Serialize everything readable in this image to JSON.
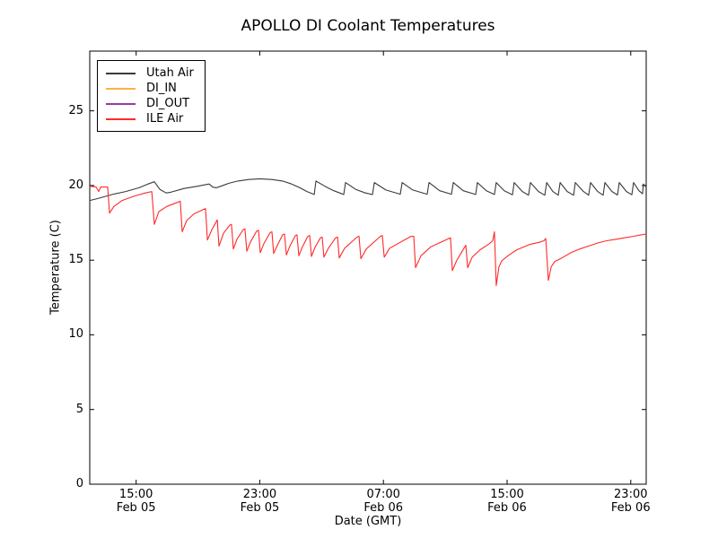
{
  "figure": {
    "background": "#ffffff",
    "frame_color": "#000000"
  },
  "chart_data": {
    "type": "line",
    "title": "APOLLO DI Coolant Temperatures",
    "xlabel": "Date (GMT)",
    "ylabel": "Temperature (C)",
    "x_units": "hours since Feb 05 12:00 GMT",
    "xlim": [
      0,
      36
    ],
    "ylim": [
      0,
      29
    ],
    "grid": false,
    "legend": {
      "position": "upper-left"
    },
    "x_ticks": [
      {
        "value": 3,
        "time": "15:00",
        "date": "Feb 05"
      },
      {
        "value": 11,
        "time": "23:00",
        "date": "Feb 05"
      },
      {
        "value": 19,
        "time": "07:00",
        "date": "Feb 06"
      },
      {
        "value": 27,
        "time": "15:00",
        "date": "Feb 06"
      },
      {
        "value": 35,
        "time": "23:00",
        "date": "Feb 06"
      }
    ],
    "y_ticks": [
      {
        "value": 0,
        "label": "0"
      },
      {
        "value": 5,
        "label": "5"
      },
      {
        "value": 10,
        "label": "10"
      },
      {
        "value": 15,
        "label": "15"
      },
      {
        "value": 20,
        "label": "20"
      },
      {
        "value": 25,
        "label": "25"
      }
    ],
    "series": [
      {
        "name": "Utah Air",
        "color": "#3a3a3a",
        "visible_in_plot": true,
        "points": [
          [
            0,
            19.0
          ],
          [
            0.58,
            19.15
          ],
          [
            1.45,
            19.4
          ],
          [
            2.32,
            19.6
          ],
          [
            3.19,
            19.85
          ],
          [
            3.77,
            20.1
          ],
          [
            4.18,
            20.25
          ],
          [
            4.53,
            19.75
          ],
          [
            4.94,
            19.5
          ],
          [
            5.23,
            19.55
          ],
          [
            6.1,
            19.8
          ],
          [
            6.97,
            19.95
          ],
          [
            7.72,
            20.1
          ],
          [
            7.95,
            19.9
          ],
          [
            8.19,
            19.85
          ],
          [
            8.48,
            19.95
          ],
          [
            9.0,
            20.15
          ],
          [
            9.58,
            20.3
          ],
          [
            10.28,
            20.4
          ],
          [
            11.03,
            20.45
          ],
          [
            11.79,
            20.4
          ],
          [
            12.48,
            20.3
          ],
          [
            13.06,
            20.1
          ],
          [
            13.59,
            19.85
          ],
          [
            14.05,
            19.6
          ],
          [
            14.52,
            19.4
          ],
          [
            14.63,
            20.3
          ],
          [
            15.21,
            19.95
          ],
          [
            15.79,
            19.65
          ],
          [
            16.43,
            19.4
          ],
          [
            16.55,
            20.2
          ],
          [
            17.19,
            19.75
          ],
          [
            17.83,
            19.5
          ],
          [
            18.29,
            19.4
          ],
          [
            18.41,
            20.2
          ],
          [
            19.16,
            19.7
          ],
          [
            20.09,
            19.42
          ],
          [
            20.21,
            20.2
          ],
          [
            20.9,
            19.7
          ],
          [
            21.83,
            19.42
          ],
          [
            21.95,
            20.2
          ],
          [
            22.64,
            19.65
          ],
          [
            23.4,
            19.42
          ],
          [
            23.52,
            20.2
          ],
          [
            24.16,
            19.65
          ],
          [
            24.97,
            19.4
          ],
          [
            25.08,
            20.2
          ],
          [
            25.66,
            19.65
          ],
          [
            26.18,
            19.4
          ],
          [
            26.3,
            20.2
          ],
          [
            26.82,
            19.65
          ],
          [
            27.35,
            19.38
          ],
          [
            27.46,
            20.2
          ],
          [
            27.99,
            19.6
          ],
          [
            28.39,
            19.35
          ],
          [
            28.51,
            20.2
          ],
          [
            29.03,
            19.6
          ],
          [
            29.44,
            19.35
          ],
          [
            29.56,
            20.2
          ],
          [
            29.96,
            19.6
          ],
          [
            30.31,
            19.35
          ],
          [
            30.43,
            20.2
          ],
          [
            30.89,
            19.6
          ],
          [
            31.3,
            19.35
          ],
          [
            31.41,
            20.2
          ],
          [
            31.94,
            19.6
          ],
          [
            32.28,
            19.35
          ],
          [
            32.4,
            20.2
          ],
          [
            32.86,
            19.6
          ],
          [
            33.21,
            19.35
          ],
          [
            33.33,
            20.2
          ],
          [
            33.79,
            19.6
          ],
          [
            34.14,
            19.37
          ],
          [
            34.26,
            20.2
          ],
          [
            34.72,
            19.6
          ],
          [
            35.07,
            19.38
          ],
          [
            35.18,
            20.2
          ],
          [
            35.53,
            19.65
          ],
          [
            35.76,
            19.45
          ],
          [
            35.82,
            20.1
          ],
          [
            36,
            19.9
          ]
        ]
      },
      {
        "name": "DI_IN",
        "color": "#ffb04a",
        "visible_in_plot": false,
        "points": []
      },
      {
        "name": "DI_OUT",
        "color": "#963ca0",
        "visible_in_plot": false,
        "points": []
      },
      {
        "name": "ILE Air",
        "color": "#ff2a2a",
        "visible_in_plot": true,
        "points": [
          [
            0,
            19.95
          ],
          [
            0.41,
            19.9
          ],
          [
            0.58,
            19.6
          ],
          [
            0.7,
            19.9
          ],
          [
            1.16,
            19.9
          ],
          [
            1.28,
            18.15
          ],
          [
            1.57,
            18.6
          ],
          [
            2.09,
            19.0
          ],
          [
            2.9,
            19.3
          ],
          [
            3.6,
            19.5
          ],
          [
            4.01,
            19.6
          ],
          [
            4.18,
            17.4
          ],
          [
            4.47,
            18.25
          ],
          [
            4.99,
            18.6
          ],
          [
            5.75,
            18.9
          ],
          [
            5.86,
            18.95
          ],
          [
            5.98,
            16.9
          ],
          [
            6.27,
            17.65
          ],
          [
            6.74,
            18.1
          ],
          [
            7.37,
            18.4
          ],
          [
            7.49,
            18.45
          ],
          [
            7.61,
            16.35
          ],
          [
            7.9,
            17.05
          ],
          [
            8.25,
            17.7
          ],
          [
            8.36,
            15.95
          ],
          [
            8.65,
            16.8
          ],
          [
            9.06,
            17.35
          ],
          [
            9.17,
            17.4
          ],
          [
            9.29,
            15.75
          ],
          [
            9.52,
            16.4
          ],
          [
            9.93,
            17.05
          ],
          [
            10.04,
            17.1
          ],
          [
            10.16,
            15.6
          ],
          [
            10.39,
            16.2
          ],
          [
            10.8,
            16.95
          ],
          [
            10.92,
            17.0
          ],
          [
            11.03,
            15.5
          ],
          [
            11.26,
            16.1
          ],
          [
            11.67,
            16.85
          ],
          [
            11.79,
            16.9
          ],
          [
            11.9,
            15.45
          ],
          [
            12.14,
            16.0
          ],
          [
            12.48,
            16.7
          ],
          [
            12.6,
            16.75
          ],
          [
            12.72,
            15.35
          ],
          [
            12.95,
            15.95
          ],
          [
            13.3,
            16.65
          ],
          [
            13.41,
            16.7
          ],
          [
            13.53,
            15.3
          ],
          [
            13.76,
            15.9
          ],
          [
            14.11,
            16.6
          ],
          [
            14.23,
            16.65
          ],
          [
            14.34,
            15.25
          ],
          [
            14.57,
            15.85
          ],
          [
            14.92,
            16.5
          ],
          [
            15.04,
            16.55
          ],
          [
            15.15,
            15.2
          ],
          [
            15.44,
            15.8
          ],
          [
            15.91,
            16.5
          ],
          [
            16.03,
            16.55
          ],
          [
            16.14,
            15.15
          ],
          [
            16.49,
            15.8
          ],
          [
            17.3,
            16.55
          ],
          [
            17.42,
            16.6
          ],
          [
            17.54,
            15.1
          ],
          [
            17.89,
            15.75
          ],
          [
            18.81,
            16.6
          ],
          [
            18.93,
            16.65
          ],
          [
            19.05,
            15.2
          ],
          [
            19.4,
            15.8
          ],
          [
            20.79,
            16.6
          ],
          [
            20.96,
            16.6
          ],
          [
            21.08,
            14.5
          ],
          [
            21.43,
            15.3
          ],
          [
            22.07,
            15.9
          ],
          [
            23.23,
            16.45
          ],
          [
            23.34,
            16.5
          ],
          [
            23.46,
            14.3
          ],
          [
            23.75,
            15.0
          ],
          [
            24.21,
            15.8
          ],
          [
            24.33,
            16.0
          ],
          [
            24.45,
            14.5
          ],
          [
            24.74,
            15.2
          ],
          [
            25.26,
            15.7
          ],
          [
            25.84,
            16.1
          ],
          [
            26.07,
            16.3
          ],
          [
            26.18,
            16.9
          ],
          [
            26.3,
            13.3
          ],
          [
            26.47,
            14.55
          ],
          [
            26.65,
            14.95
          ],
          [
            27.06,
            15.3
          ],
          [
            27.64,
            15.7
          ],
          [
            28.45,
            16.05
          ],
          [
            29.09,
            16.2
          ],
          [
            29.38,
            16.3
          ],
          [
            29.5,
            16.45
          ],
          [
            29.67,
            13.65
          ],
          [
            29.85,
            14.55
          ],
          [
            30.08,
            14.9
          ],
          [
            30.54,
            15.15
          ],
          [
            31.12,
            15.5
          ],
          [
            31.7,
            15.75
          ],
          [
            32.28,
            15.95
          ],
          [
            32.86,
            16.15
          ],
          [
            33.44,
            16.3
          ],
          [
            34.02,
            16.4
          ],
          [
            34.6,
            16.5
          ],
          [
            35.18,
            16.6
          ],
          [
            35.59,
            16.68
          ],
          [
            36,
            16.75
          ]
        ]
      }
    ]
  }
}
